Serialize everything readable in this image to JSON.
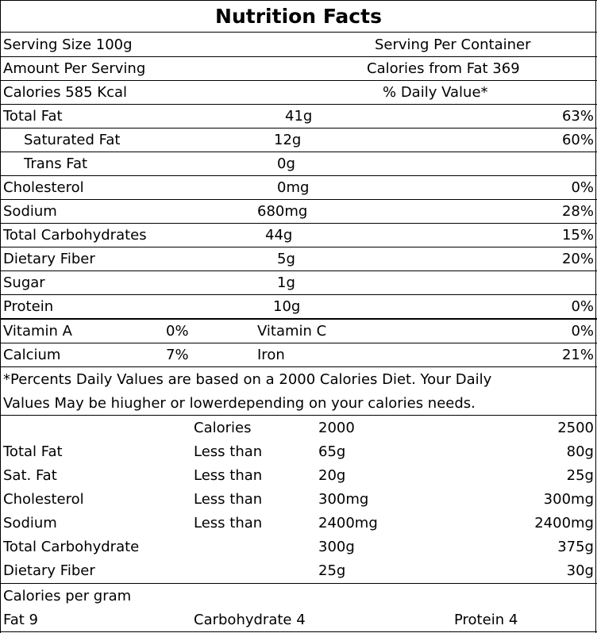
{
  "title": "Nutrition Facts",
  "header": {
    "serving_size": "Serving Size 100g",
    "serving_per_container": "Serving Per  Container",
    "amount_per_serving": "Amount Per Serving",
    "calories_from_fat": "Calories from Fat 369",
    "calories": "Calories 585 Kcal",
    "daily_value_header": "% Daily Value*"
  },
  "nutrients": [
    {
      "name": "Total Fat",
      "amount": "41g",
      "dv": "63%"
    },
    {
      "name": "Saturated Fat",
      "amount": "12g",
      "dv": "60%"
    },
    {
      "name": "Trans Fat",
      "amount": "0g",
      "dv": ""
    },
    {
      "name": "Cholesterol",
      "amount": "0mg",
      "dv": "0%"
    },
    {
      "name": "Sodium",
      "amount": "680mg",
      "dv": "28%"
    },
    {
      "name": "Total Carbohydrates",
      "amount": "44g",
      "dv": "15%"
    },
    {
      "name": "Dietary Fiber",
      "amount": "5g",
      "dv": "20%"
    },
    {
      "name": "Sugar",
      "amount": "1g",
      "dv": ""
    },
    {
      "name": "Protein",
      "amount": "10g",
      "dv": "0%"
    }
  ],
  "vitamins": [
    {
      "name1": "Vitamin A",
      "val1": "0%",
      "name2": "Vitamin C",
      "val2": "0%"
    },
    {
      "name1": "Calcium",
      "val1": "7%",
      "name2": "Iron",
      "val2": "21%"
    }
  ],
  "footnote": {
    "line1": "*Percents  Daily  Values  are based on a 2000 Calories Diet. Your Daily",
    "line2": "Values May be hiugher or lowerdepending on your calories needs."
  },
  "reference": {
    "header": {
      "col2": "Calories",
      "col3": "2000",
      "col4": "2500"
    },
    "rows": [
      {
        "name": "Total Fat",
        "qual": "Less than",
        "v2000": "65g",
        "v2500": "80g"
      },
      {
        "name": "Sat. Fat",
        "qual": "Less than",
        "v2000": "20g",
        "v2500": "25g"
      },
      {
        "name": "Cholesterol",
        "qual": "Less than",
        "v2000": "300mg",
        "v2500": "300mg"
      },
      {
        "name": "Sodium",
        "qual": "Less than",
        "v2000": "2400mg",
        "v2500": "2400mg"
      },
      {
        "name": "Total Carbohydrate",
        "qual": "",
        "v2000": "300g",
        "v2500": "375g"
      },
      {
        "name": "Dietary Fiber",
        "qual": "",
        "v2000": "25g",
        "v2500": "30g"
      }
    ]
  },
  "calories_per_gram": {
    "label": "Calories per gram",
    "fat": "Fat 9",
    "carbohydrate": "Carbohydrate 4",
    "protein": "Protein 4"
  }
}
